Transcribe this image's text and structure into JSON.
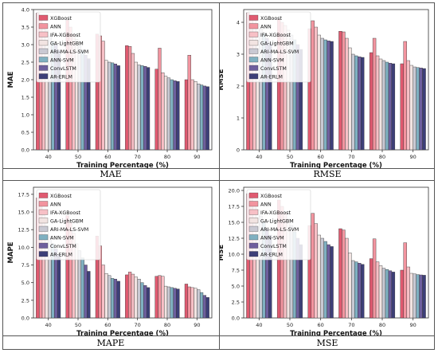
{
  "captions": [
    "MAE",
    "RMSE",
    "MAPE",
    "MSE"
  ],
  "colors": {
    "XGBoost": "#e05a70",
    "ANN": "#f2949f",
    "IFA-XGBoost": "#f7c0c6",
    "GA-LightGBM": "#f2e4e2",
    "ARI-MA-LS-SVM": "#c9c9d3",
    "ANN-SVM": "#7fb0c1",
    "ConvLSTM": "#6e5f9e",
    "AR-ERLM": "#3d3f78"
  },
  "chart_data": [
    {
      "type": "bar",
      "title": "",
      "xlabel": "Training Percentage (%)",
      "ylabel": "MAE",
      "categories": [
        "40",
        "50",
        "60",
        "70",
        "80",
        "90"
      ],
      "ylim": [
        0,
        4.0
      ],
      "yticks": [
        "0.0",
        "0.5",
        "1.0",
        "1.5",
        "2.0",
        "2.5",
        "3.0",
        "3.5",
        "4.0"
      ],
      "legend_position": "top-left",
      "series": [
        {
          "name": "XGBoost",
          "values": [
            3.9,
            3.7,
            3.3,
            2.97,
            2.3,
            2.0
          ]
        },
        {
          "name": "ANN",
          "values": [
            3.75,
            3.5,
            3.25,
            2.95,
            2.9,
            2.7
          ]
        },
        {
          "name": "IFA-XGBoost",
          "values": [
            3.55,
            3.3,
            3.1,
            2.75,
            2.2,
            2.0
          ]
        },
        {
          "name": "GA-LightGBM",
          "values": [
            3.4,
            3.15,
            2.55,
            2.5,
            2.1,
            1.95
          ]
        },
        {
          "name": "ARI-MA-LS-SVM",
          "values": [
            3.25,
            3.0,
            2.5,
            2.42,
            2.05,
            1.88
          ]
        },
        {
          "name": "ANN-SVM",
          "values": [
            3.1,
            2.85,
            2.48,
            2.4,
            2.0,
            1.85
          ]
        },
        {
          "name": "ConvLSTM",
          "values": [
            3.0,
            2.7,
            2.45,
            2.38,
            1.97,
            1.82
          ]
        },
        {
          "name": "AR-ERLM",
          "values": [
            2.85,
            2.6,
            2.4,
            2.35,
            1.95,
            1.8
          ]
        }
      ]
    },
    {
      "type": "bar",
      "title": "",
      "xlabel": "Training Percentage (%)",
      "ylabel": "RMSE",
      "categories": [
        "40",
        "50",
        "60",
        "70",
        "80",
        "90"
      ],
      "ylim": [
        0,
        4.4
      ],
      "yticks": [
        "0",
        "1",
        "2",
        "3",
        "4"
      ],
      "legend_position": "top-left",
      "series": [
        {
          "name": "XGBoost",
          "values": [
            4.3,
            4.1,
            3.8,
            3.72,
            3.05,
            2.7
          ]
        },
        {
          "name": "ANN",
          "values": [
            4.2,
            4.0,
            4.05,
            3.7,
            3.5,
            3.4
          ]
        },
        {
          "name": "IFA-XGBoost",
          "values": [
            4.1,
            3.9,
            3.85,
            3.5,
            2.95,
            2.8
          ]
        },
        {
          "name": "GA-LightGBM",
          "values": [
            3.95,
            3.75,
            3.6,
            3.2,
            2.85,
            2.65
          ]
        },
        {
          "name": "ARI-MA-LS-SVM",
          "values": [
            3.8,
            3.6,
            3.5,
            3.0,
            2.8,
            2.6
          ]
        },
        {
          "name": "ANN-SVM",
          "values": [
            3.65,
            3.45,
            3.45,
            2.95,
            2.75,
            2.58
          ]
        },
        {
          "name": "ConvLSTM",
          "values": [
            3.5,
            3.3,
            3.42,
            2.92,
            2.72,
            2.57
          ]
        },
        {
          "name": "AR-ERLM",
          "values": [
            3.35,
            3.15,
            3.4,
            2.9,
            2.7,
            2.55
          ]
        }
      ]
    },
    {
      "type": "bar",
      "title": "",
      "xlabel": "Training Percentage (%)",
      "ylabel": "MAPE",
      "categories": [
        "40",
        "50",
        "60",
        "70",
        "80",
        "90"
      ],
      "ylim": [
        0,
        18.5
      ],
      "yticks": [
        "0.0",
        "2.5",
        "5.0",
        "7.5",
        "10.0",
        "12.5",
        "15.0",
        "17.5"
      ],
      "legend_position": "top-left",
      "series": [
        {
          "name": "XGBoost",
          "values": [
            17.0,
            14.5,
            11.6,
            6.1,
            5.9,
            4.8
          ]
        },
        {
          "name": "ANN",
          "values": [
            16.0,
            13.5,
            10.2,
            6.5,
            6.0,
            4.4
          ]
        },
        {
          "name": "IFA-XGBoost",
          "values": [
            14.5,
            12.0,
            7.5,
            6.2,
            5.9,
            4.3
          ]
        },
        {
          "name": "GA-LightGBM",
          "values": [
            13.0,
            10.5,
            6.3,
            5.8,
            4.5,
            4.2
          ]
        },
        {
          "name": "ARI-MA-LS-SVM",
          "values": [
            11.5,
            9.5,
            6.0,
            5.5,
            4.4,
            4.0
          ]
        },
        {
          "name": "ANN-SVM",
          "values": [
            10.5,
            8.5,
            5.6,
            5.0,
            4.3,
            3.6
          ]
        },
        {
          "name": "ConvLSTM",
          "values": [
            9.8,
            7.5,
            5.5,
            4.6,
            4.2,
            3.2
          ]
        },
        {
          "name": "AR-ERLM",
          "values": [
            9.0,
            6.6,
            5.2,
            4.3,
            4.1,
            2.9
          ]
        }
      ]
    },
    {
      "type": "bar",
      "title": "",
      "xlabel": "Training Percentage (%)",
      "ylabel": "MSE",
      "categories": [
        "40",
        "50",
        "60",
        "70",
        "80",
        "90"
      ],
      "ylim": [
        0,
        20.5
      ],
      "yticks": [
        "0.0",
        "2.5",
        "5.0",
        "7.5",
        "10.0",
        "12.5",
        "15.0",
        "17.5",
        "20.0"
      ],
      "legend_position": "top-left",
      "series": [
        {
          "name": "XGBoost",
          "values": [
            19.5,
            18.5,
            14.5,
            14.0,
            9.3,
            7.5
          ]
        },
        {
          "name": "ANN",
          "values": [
            19.0,
            17.5,
            16.4,
            13.8,
            12.4,
            11.8
          ]
        },
        {
          "name": "IFA-XGBoost",
          "values": [
            18.0,
            16.5,
            14.8,
            12.5,
            8.8,
            8.0
          ]
        },
        {
          "name": "GA-LightGBM",
          "values": [
            17.0,
            15.5,
            13.0,
            10.2,
            8.2,
            7.0
          ]
        },
        {
          "name": "ARI-MA-LS-SVM",
          "values": [
            16.0,
            14.5,
            12.5,
            9.0,
            7.8,
            6.9
          ]
        },
        {
          "name": "ANN-SVM",
          "values": [
            15.0,
            13.5,
            12.0,
            8.8,
            7.6,
            6.8
          ]
        },
        {
          "name": "ConvLSTM",
          "values": [
            14.0,
            12.5,
            11.5,
            8.6,
            7.4,
            6.75
          ]
        },
        {
          "name": "AR-ERLM",
          "values": [
            13.0,
            11.5,
            11.2,
            8.4,
            7.2,
            6.7
          ]
        }
      ]
    }
  ]
}
